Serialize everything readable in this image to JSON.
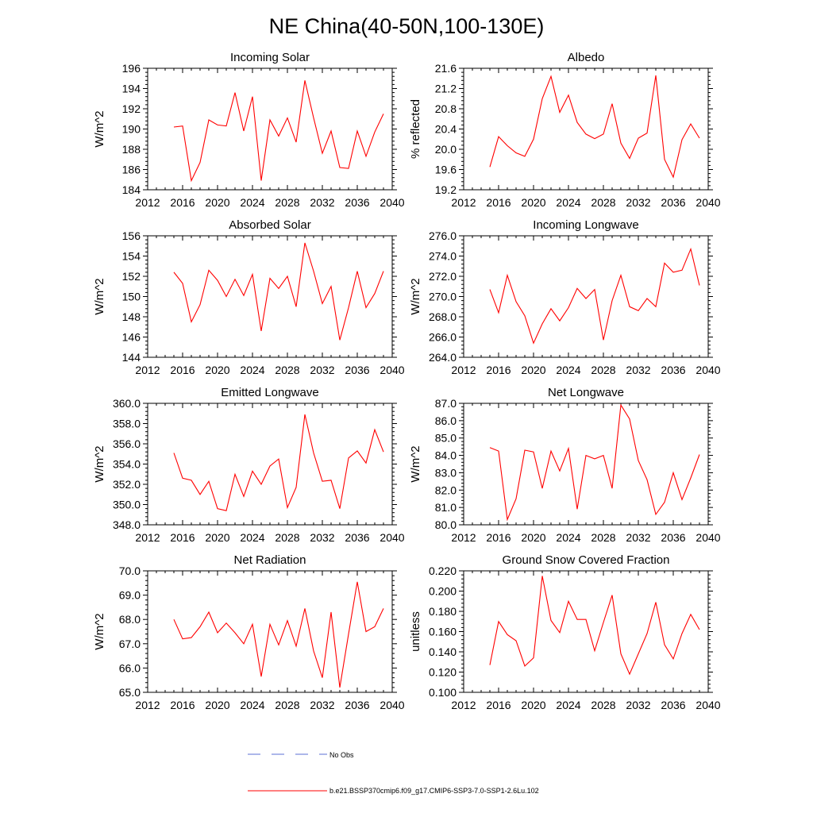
{
  "figure": {
    "title": "NE China(40-50N,100-130E)"
  },
  "legend": {
    "entries": [
      {
        "label": "No Obs",
        "color": "#5b6fd6",
        "style": "dashed"
      },
      {
        "label": "b.e21.BSSP370cmip6.f09_g17.CMIP6-SSP3-7.0-SSP1-2.6Lu.102",
        "color": "#ff0000",
        "style": "solid"
      }
    ]
  },
  "chart_data": [
    {
      "type": "line",
      "title": "Incoming Solar",
      "ylabel": "W/m^2",
      "xlim": [
        2012,
        2040
      ],
      "ylim": [
        184,
        196
      ],
      "xticks": [
        2012,
        2016,
        2020,
        2024,
        2028,
        2032,
        2036,
        2040
      ],
      "yticks": [
        184,
        186,
        188,
        190,
        192,
        194,
        196
      ],
      "ytick_labels": [
        "184",
        "186",
        "188",
        "190",
        "192",
        "194",
        "196"
      ],
      "series": [
        {
          "color": "#ff0000",
          "x": [
            2015,
            2016,
            2017,
            2018,
            2019,
            2020,
            2021,
            2022,
            2023,
            2024,
            2025,
            2026,
            2027,
            2028,
            2029,
            2030,
            2031,
            2032,
            2033,
            2034,
            2035,
            2036,
            2037,
            2038,
            2039
          ],
          "values": [
            190.2,
            190.3,
            184.9,
            186.7,
            190.9,
            190.4,
            190.3,
            193.6,
            189.8,
            193.2,
            184.9,
            190.9,
            189.3,
            191.1,
            188.7,
            194.8,
            191.1,
            187.6,
            189.8,
            186.2,
            186.1,
            189.8,
            187.3,
            189.7,
            191.5
          ]
        }
      ]
    },
    {
      "type": "line",
      "title": "Albedo",
      "ylabel": "% reflected",
      "xlim": [
        2012,
        2040
      ],
      "ylim": [
        19.2,
        21.6
      ],
      "xticks": [
        2012,
        2016,
        2020,
        2024,
        2028,
        2032,
        2036,
        2040
      ],
      "yticks": [
        19.2,
        19.6,
        20.0,
        20.4,
        20.8,
        21.2,
        21.6
      ],
      "ytick_labels": [
        "19.2",
        "19.6",
        "20.0",
        "20.4",
        "20.8",
        "21.2",
        "21.6"
      ],
      "series": [
        {
          "color": "#ff0000",
          "x": [
            2015,
            2016,
            2017,
            2018,
            2019,
            2020,
            2021,
            2022,
            2023,
            2024,
            2025,
            2026,
            2027,
            2028,
            2029,
            2030,
            2031,
            2032,
            2033,
            2034,
            2035,
            2036,
            2037,
            2038,
            2039
          ],
          "values": [
            19.65,
            20.25,
            20.07,
            19.93,
            19.86,
            20.2,
            21.0,
            21.44,
            20.73,
            21.07,
            20.53,
            20.3,
            20.21,
            20.3,
            20.9,
            20.12,
            19.82,
            20.22,
            20.32,
            21.46,
            19.8,
            19.45,
            20.19,
            20.5,
            20.22
          ]
        }
      ]
    },
    {
      "type": "line",
      "title": "Absorbed Solar",
      "ylabel": "W/m^2",
      "xlim": [
        2012,
        2040
      ],
      "ylim": [
        144,
        156
      ],
      "xticks": [
        2012,
        2016,
        2020,
        2024,
        2028,
        2032,
        2036,
        2040
      ],
      "yticks": [
        144,
        146,
        148,
        150,
        152,
        154,
        156
      ],
      "ytick_labels": [
        "144",
        "146",
        "148",
        "150",
        "152",
        "154",
        "156"
      ],
      "series": [
        {
          "color": "#ff0000",
          "x": [
            2015,
            2016,
            2017,
            2018,
            2019,
            2020,
            2021,
            2022,
            2023,
            2024,
            2025,
            2026,
            2027,
            2028,
            2029,
            2030,
            2031,
            2032,
            2033,
            2034,
            2035,
            2036,
            2037,
            2038,
            2039
          ],
          "values": [
            152.4,
            151.3,
            147.5,
            149.2,
            152.6,
            151.6,
            150.0,
            151.7,
            150.1,
            152.2,
            146.6,
            151.8,
            150.8,
            152.0,
            149.0,
            155.3,
            152.5,
            149.3,
            151.0,
            145.7,
            148.9,
            152.5,
            148.9,
            150.3,
            152.5
          ]
        }
      ]
    },
    {
      "type": "line",
      "title": "Incoming Longwave",
      "ylabel": "W/m^2",
      "xlim": [
        2012,
        2040
      ],
      "ylim": [
        264,
        276
      ],
      "xticks": [
        2012,
        2016,
        2020,
        2024,
        2028,
        2032,
        2036,
        2040
      ],
      "yticks": [
        264,
        266,
        268,
        270,
        272,
        274,
        276
      ],
      "ytick_labels": [
        "264.0",
        "266.0",
        "268.0",
        "270.0",
        "272.0",
        "274.0",
        "276.0"
      ],
      "series": [
        {
          "color": "#ff0000",
          "x": [
            2015,
            2016,
            2017,
            2018,
            2019,
            2020,
            2021,
            2022,
            2023,
            2024,
            2025,
            2026,
            2027,
            2028,
            2029,
            2030,
            2031,
            2032,
            2033,
            2034,
            2035,
            2036,
            2037,
            2038,
            2039
          ],
          "values": [
            270.7,
            268.4,
            272.1,
            269.5,
            268.1,
            265.4,
            267.3,
            268.8,
            267.6,
            268.9,
            270.8,
            269.8,
            270.7,
            265.7,
            269.6,
            272.1,
            269.0,
            268.6,
            269.8,
            269.0,
            273.3,
            272.4,
            272.6,
            274.7,
            271.1
          ]
        }
      ]
    },
    {
      "type": "line",
      "title": "Emitted Longwave",
      "ylabel": "W/m^2",
      "xlim": [
        2012,
        2040
      ],
      "ylim": [
        348,
        360
      ],
      "xticks": [
        2012,
        2016,
        2020,
        2024,
        2028,
        2032,
        2036,
        2040
      ],
      "yticks": [
        348,
        350,
        352,
        354,
        356,
        358,
        360
      ],
      "ytick_labels": [
        "348.0",
        "350.0",
        "352.0",
        "354.0",
        "356.0",
        "358.0",
        "360.0"
      ],
      "series": [
        {
          "color": "#ff0000",
          "x": [
            2015,
            2016,
            2017,
            2018,
            2019,
            2020,
            2021,
            2022,
            2023,
            2024,
            2025,
            2026,
            2027,
            2028,
            2029,
            2030,
            2031,
            2032,
            2033,
            2034,
            2035,
            2036,
            2037,
            2038,
            2039
          ],
          "values": [
            355.1,
            352.6,
            352.4,
            351.0,
            352.3,
            349.6,
            349.4,
            353.0,
            350.8,
            353.3,
            352.0,
            353.8,
            354.5,
            349.7,
            351.7,
            358.9,
            355.1,
            352.3,
            352.4,
            349.6,
            354.6,
            355.3,
            354.1,
            357.4,
            355.2
          ]
        }
      ]
    },
    {
      "type": "line",
      "title": "Net Longwave",
      "ylabel": "W/m^2",
      "xlim": [
        2012,
        2040
      ],
      "ylim": [
        80,
        87
      ],
      "xticks": [
        2012,
        2016,
        2020,
        2024,
        2028,
        2032,
        2036,
        2040
      ],
      "yticks": [
        80,
        81,
        82,
        83,
        84,
        85,
        86,
        87
      ],
      "ytick_labels": [
        "80.0",
        "81.0",
        "82.0",
        "83.0",
        "84.0",
        "85.0",
        "86.0",
        "87.0"
      ],
      "series": [
        {
          "color": "#ff0000",
          "x": [
            2015,
            2016,
            2017,
            2018,
            2019,
            2020,
            2021,
            2022,
            2023,
            2024,
            2025,
            2026,
            2027,
            2028,
            2029,
            2030,
            2031,
            2032,
            2033,
            2034,
            2035,
            2036,
            2037,
            2038,
            2039
          ],
          "values": [
            84.45,
            84.25,
            80.3,
            81.5,
            84.3,
            84.2,
            82.1,
            84.25,
            83.1,
            84.4,
            80.9,
            84.0,
            83.8,
            84.0,
            82.1,
            86.9,
            86.1,
            83.7,
            82.6,
            80.6,
            81.3,
            83.0,
            81.45,
            82.7,
            84.05
          ]
        }
      ]
    },
    {
      "type": "line",
      "title": "Net Radiation",
      "ylabel": "W/m^2",
      "xlim": [
        2012,
        2040
      ],
      "ylim": [
        65,
        70
      ],
      "xticks": [
        2012,
        2016,
        2020,
        2024,
        2028,
        2032,
        2036,
        2040
      ],
      "yticks": [
        65,
        66,
        67,
        68,
        69,
        70
      ],
      "ytick_labels": [
        "65.0",
        "66.0",
        "67.0",
        "68.0",
        "69.0",
        "70.0"
      ],
      "series": [
        {
          "color": "#ff0000",
          "x": [
            2015,
            2016,
            2017,
            2018,
            2019,
            2020,
            2021,
            2022,
            2023,
            2024,
            2025,
            2026,
            2027,
            2028,
            2029,
            2030,
            2031,
            2032,
            2033,
            2034,
            2035,
            2036,
            2037,
            2038,
            2039
          ],
          "values": [
            68.0,
            67.2,
            67.25,
            67.7,
            68.3,
            67.45,
            67.85,
            67.45,
            67.0,
            67.8,
            65.65,
            67.8,
            66.95,
            67.95,
            66.9,
            68.45,
            66.7,
            65.6,
            68.3,
            65.2,
            67.4,
            69.55,
            67.5,
            67.7,
            68.45
          ]
        }
      ]
    },
    {
      "type": "line",
      "title": "Ground Snow Covered Fraction",
      "ylabel": "unitless",
      "xlim": [
        2012,
        2040
      ],
      "ylim": [
        0.1,
        0.22
      ],
      "xticks": [
        2012,
        2016,
        2020,
        2024,
        2028,
        2032,
        2036,
        2040
      ],
      "yticks": [
        0.1,
        0.12,
        0.14,
        0.16,
        0.18,
        0.2,
        0.22
      ],
      "ytick_labels": [
        "0.100",
        "0.120",
        "0.140",
        "0.160",
        "0.180",
        "0.200",
        "0.220"
      ],
      "series": [
        {
          "color": "#ff0000",
          "x": [
            2015,
            2016,
            2017,
            2018,
            2019,
            2020,
            2021,
            2022,
            2023,
            2024,
            2025,
            2026,
            2027,
            2028,
            2029,
            2030,
            2031,
            2032,
            2033,
            2034,
            2035,
            2036,
            2037,
            2038,
            2039
          ],
          "values": [
            0.127,
            0.17,
            0.157,
            0.151,
            0.126,
            0.134,
            0.215,
            0.171,
            0.159,
            0.19,
            0.172,
            0.172,
            0.141,
            0.169,
            0.196,
            0.138,
            0.118,
            0.138,
            0.158,
            0.189,
            0.147,
            0.133,
            0.158,
            0.177,
            0.162
          ]
        }
      ]
    }
  ]
}
